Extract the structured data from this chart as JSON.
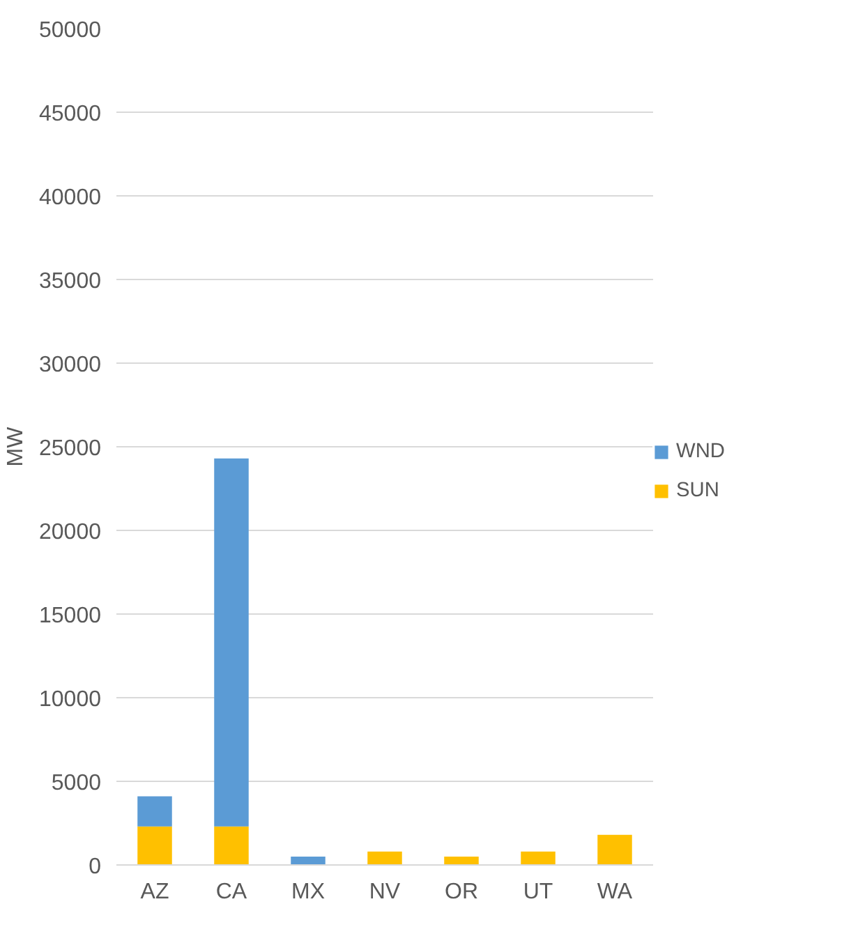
{
  "chart_data": {
    "type": "bar",
    "stacked": true,
    "ylabel": "MW",
    "categories": [
      "AZ",
      "CA",
      "MX",
      "NV",
      "OR",
      "UT",
      "WA"
    ],
    "series": [
      {
        "name": "SUN",
        "color": "#ffc000",
        "values": [
          2300,
          2300,
          0,
          800,
          500,
          800,
          1800
        ]
      },
      {
        "name": "WND",
        "color": "#5b9bd5",
        "values": [
          1800,
          22000,
          500,
          0,
          0,
          0,
          0
        ]
      }
    ],
    "ylim": [
      0,
      50000
    ],
    "yticks": [
      0,
      5000,
      10000,
      15000,
      20000,
      25000,
      30000,
      35000,
      40000,
      45000,
      50000
    ],
    "grid": "y",
    "legend": "right"
  }
}
